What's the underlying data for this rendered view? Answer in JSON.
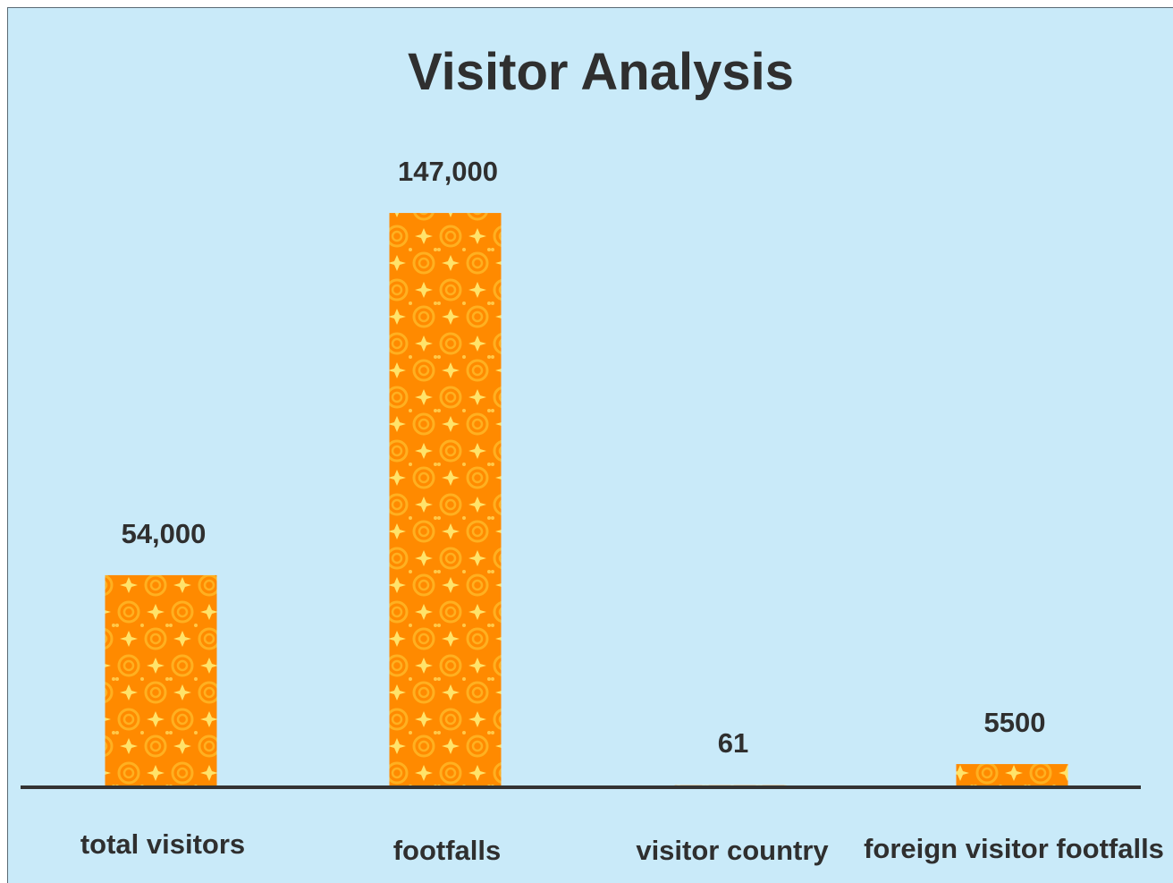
{
  "chart_data": {
    "type": "bar",
    "title": "Visitor Analysis",
    "categories": [
      "total visitors",
      "footfalls",
      "visitor country",
      "foreign visitor footfalls"
    ],
    "values": [
      54000,
      147000,
      61,
      5500
    ],
    "value_labels": [
      "54,000",
      "147,000",
      "61",
      "5500"
    ],
    "ylim": [
      0,
      150000
    ],
    "grid": false,
    "legend": "none",
    "xlabel": "",
    "ylabel": ""
  },
  "colors": {
    "background": "#c9eaf9",
    "bar_base": "#ff8a00",
    "bar_swirl": "#ffb020",
    "bar_star": "#ffe36a",
    "axis": "#333333",
    "text": "#2f2f2f"
  }
}
